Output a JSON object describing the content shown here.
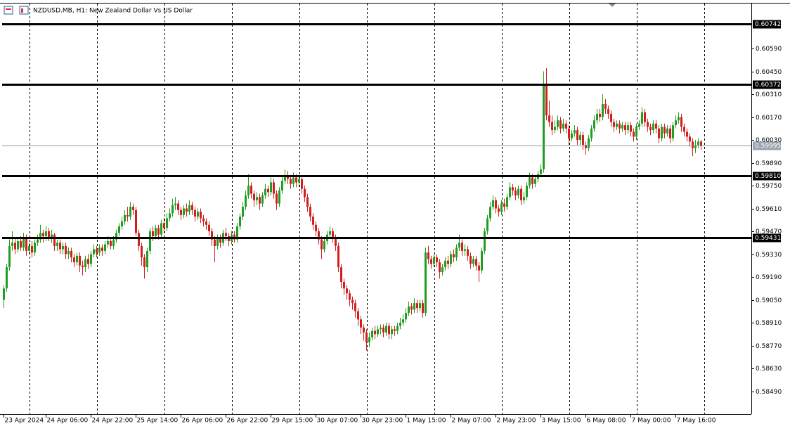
{
  "chart_data": {
    "type": "candlestick",
    "title": "NZDUSD.MB, H1:  New Zealand Dollar Vs US Dollar",
    "up_color": "#1f9e1f",
    "down_color": "#d21e1e",
    "grid": true,
    "xlim": [
      -0.5,
      265.75
    ],
    "xticks": [
      {
        "value": 0,
        "label": "23 Apr 2024"
      },
      {
        "value": 15,
        "label": "24 Apr 06:00"
      },
      {
        "value": 31,
        "label": "24 Apr 22:00"
      },
      {
        "value": 47,
        "label": "25 Apr 14:00"
      },
      {
        "value": 63,
        "label": "26 Apr 06:00"
      },
      {
        "value": 79,
        "label": "26 Apr 22:00"
      },
      {
        "value": 95,
        "label": "29 Apr 15:00"
      },
      {
        "value": 111,
        "label": "30 Apr 07:00"
      },
      {
        "value": 127,
        "label": "30 Apr 23:00"
      },
      {
        "value": 143,
        "label": "1 May 15:00"
      },
      {
        "value": 159,
        "label": "2 May 07:00"
      },
      {
        "value": 175,
        "label": "2 May 23:00"
      },
      {
        "value": 191,
        "label": "3 May 15:00"
      },
      {
        "value": 207,
        "label": "6 May 08:00"
      },
      {
        "value": 223,
        "label": "7 May 00:00"
      },
      {
        "value": 239,
        "label": "7 May 16:00"
      }
    ],
    "ylim": [
      0.5835,
      0.60866
    ],
    "yticks": [
      {
        "value": 0.6059,
        "label": "0.60590"
      },
      {
        "value": 0.6045,
        "label": "0.60450"
      },
      {
        "value": 0.6031,
        "label": "0.60310"
      },
      {
        "value": 0.6017,
        "label": "0.60170"
      },
      {
        "value": 0.6003,
        "label": "0.60030"
      },
      {
        "value": 0.5989,
        "label": "0.59890"
      },
      {
        "value": 0.5975,
        "label": "0.59750"
      },
      {
        "value": 0.5961,
        "label": "0.59610"
      },
      {
        "value": 0.5947,
        "label": "0.59470"
      },
      {
        "value": 0.5933,
        "label": "0.59330"
      },
      {
        "value": 0.5919,
        "label": "0.59190"
      },
      {
        "value": 0.5905,
        "label": "0.59050"
      },
      {
        "value": 0.5891,
        "label": "0.58910"
      },
      {
        "value": 0.5877,
        "label": "0.58770"
      },
      {
        "value": 0.5863,
        "label": "0.58630"
      },
      {
        "value": 0.5849,
        "label": "0.58490"
      }
    ],
    "levels": [
      0.60742,
      0.60372,
      {
        "value": 0.5981,
        "label": "0.59810"
      },
      0.59431
    ],
    "current_price": 0.59995,
    "open": [
      0.5905,
      0.5912,
      0.5925,
      0.5938,
      0.594,
      0.5936,
      0.5941,
      0.5937,
      0.5943,
      0.5935,
      0.5938,
      0.5934,
      0.594,
      0.5942,
      0.5946,
      0.5944,
      0.5947,
      0.5943,
      0.5945,
      0.5938,
      0.594,
      0.5936,
      0.5938,
      0.5933,
      0.5935,
      0.5931,
      0.5928,
      0.5932,
      0.5926,
      0.5925,
      0.593,
      0.5927,
      0.5933,
      0.5936,
      0.5934,
      0.5937,
      0.5935,
      0.5939,
      0.5941,
      0.5938,
      0.5942,
      0.5946,
      0.595,
      0.5953,
      0.5957,
      0.5956,
      0.5962,
      0.596,
      0.5946,
      0.5938,
      0.5931,
      0.5925,
      0.5935,
      0.5947,
      0.5944,
      0.5949,
      0.5945,
      0.5952,
      0.5949,
      0.5955,
      0.5958,
      0.5963,
      0.5964,
      0.596,
      0.5957,
      0.5961,
      0.5959,
      0.5963,
      0.596,
      0.5956,
      0.5959,
      0.5955,
      0.5953,
      0.5951,
      0.5947,
      0.5942,
      0.5938,
      0.5943,
      0.594,
      0.5946,
      0.5944,
      0.5941,
      0.5945,
      0.5942,
      0.595,
      0.5956,
      0.5962,
      0.5969,
      0.5975,
      0.597,
      0.5966,
      0.5968,
      0.5964,
      0.5969,
      0.5973,
      0.5971,
      0.5977,
      0.597,
      0.5964,
      0.5972,
      0.5978,
      0.5981,
      0.5979,
      0.5976,
      0.598,
      0.5977,
      0.5979,
      0.5973,
      0.5968,
      0.5962,
      0.5956,
      0.5951,
      0.5947,
      0.5942,
      0.5936,
      0.5941,
      0.5945,
      0.5947,
      0.5943,
      0.5938,
      0.5925,
      0.5916,
      0.5912,
      0.5909,
      0.5905,
      0.5903,
      0.5898,
      0.5893,
      0.5888,
      0.5885,
      0.5879,
      0.5882,
      0.5886,
      0.5884,
      0.5887,
      0.5888,
      0.5885,
      0.5889,
      0.5884,
      0.5887,
      0.5886,
      0.5889,
      0.5891,
      0.5893,
      0.5897,
      0.5901,
      0.5899,
      0.5903,
      0.59,
      0.5903,
      0.5897,
      0.5934,
      0.593,
      0.5927,
      0.5931,
      0.5928,
      0.5922,
      0.5925,
      0.5929,
      0.5927,
      0.5933,
      0.5931,
      0.5937,
      0.594,
      0.5935,
      0.5936,
      0.5932,
      0.5927,
      0.593,
      0.5926,
      0.5923,
      0.5935,
      0.5947,
      0.5955,
      0.5962,
      0.5966,
      0.5961,
      0.5959,
      0.5964,
      0.5962,
      0.5968,
      0.5974,
      0.5972,
      0.5969,
      0.5973,
      0.5966,
      0.5968,
      0.5975,
      0.598,
      0.5976,
      0.5979,
      0.5982,
      0.5985,
      0.6037,
      0.6018,
      0.6014,
      0.6009,
      0.6011,
      0.6015,
      0.601,
      0.6013,
      0.601,
      0.6004,
      0.6007,
      0.6009,
      0.6003,
      0.6006,
      0.6,
      0.5998,
      0.6004,
      0.601,
      0.6015,
      0.6019,
      0.6017,
      0.6025,
      0.6022,
      0.6019,
      0.6014,
      0.6011,
      0.6013,
      0.601,
      0.6012,
      0.6009,
      0.6012,
      0.6008,
      0.6005,
      0.6011,
      0.6013,
      0.602,
      0.6014,
      0.6011,
      0.6009,
      0.6013,
      0.601,
      0.6004,
      0.6011,
      0.6007,
      0.601,
      0.6004,
      0.6012,
      0.6015,
      0.6017,
      0.6011,
      0.6008,
      0.6005,
      0.6002,
      0.5998,
      0.6,
      0.6002
    ],
    "high": [
      0.5914,
      0.5927,
      0.5942,
      0.5947,
      0.5943,
      0.5943,
      0.5944,
      0.5946,
      0.5945,
      0.594,
      0.5941,
      0.5942,
      0.5945,
      0.5951,
      0.5948,
      0.595,
      0.5949,
      0.5948,
      0.5946,
      0.5942,
      0.5942,
      0.594,
      0.594,
      0.5937,
      0.5937,
      0.5933,
      0.5934,
      0.5934,
      0.5929,
      0.5932,
      0.5933,
      0.5935,
      0.5939,
      0.5938,
      0.5939,
      0.5939,
      0.5941,
      0.5944,
      0.5943,
      0.5944,
      0.5948,
      0.5952,
      0.5956,
      0.596,
      0.5962,
      0.5965,
      0.5964,
      0.5962,
      0.5948,
      0.594,
      0.5933,
      0.5937,
      0.5949,
      0.595,
      0.5951,
      0.5951,
      0.5954,
      0.5955,
      0.5958,
      0.5961,
      0.5967,
      0.5968,
      0.5966,
      0.5962,
      0.5963,
      0.5964,
      0.5966,
      0.5965,
      0.5962,
      0.5961,
      0.5961,
      0.5957,
      0.5955,
      0.5953,
      0.5949,
      0.5944,
      0.5945,
      0.5945,
      0.5948,
      0.5949,
      0.5946,
      0.5947,
      0.5947,
      0.5952,
      0.5958,
      0.5965,
      0.5972,
      0.5982,
      0.5977,
      0.5972,
      0.5971,
      0.597,
      0.5971,
      0.5976,
      0.5975,
      0.598,
      0.5979,
      0.5972,
      0.5974,
      0.5981,
      0.5985,
      0.5984,
      0.5981,
      0.5983,
      0.5982,
      0.5981,
      0.598,
      0.5975,
      0.597,
      0.5964,
      0.5958,
      0.5953,
      0.5949,
      0.5944,
      0.5943,
      0.5947,
      0.595,
      0.5949,
      0.5945,
      0.594,
      0.5927,
      0.5918,
      0.5914,
      0.5911,
      0.5907,
      0.5905,
      0.59,
      0.5895,
      0.589,
      0.5887,
      0.5885,
      0.5888,
      0.5889,
      0.5889,
      0.589,
      0.589,
      0.5891,
      0.5891,
      0.5889,
      0.5889,
      0.5891,
      0.5894,
      0.5896,
      0.59,
      0.5904,
      0.5903,
      0.5906,
      0.5905,
      0.5905,
      0.5905,
      0.5937,
      0.5938,
      0.5932,
      0.5933,
      0.5933,
      0.593,
      0.5927,
      0.5931,
      0.5932,
      0.5935,
      0.5936,
      0.5939,
      0.5945,
      0.5942,
      0.5939,
      0.5938,
      0.5934,
      0.5932,
      0.5932,
      0.5928,
      0.5937,
      0.5949,
      0.5957,
      0.5965,
      0.5969,
      0.5968,
      0.5963,
      0.5966,
      0.5967,
      0.597,
      0.5977,
      0.5976,
      0.5974,
      0.5975,
      0.5975,
      0.5971,
      0.5977,
      0.5983,
      0.5982,
      0.5981,
      0.5984,
      0.5988,
      0.6045,
      0.6047,
      0.6027,
      0.6018,
      0.6015,
      0.6018,
      0.6017,
      0.6016,
      0.6015,
      0.6012,
      0.6009,
      0.6012,
      0.6011,
      0.6008,
      0.6008,
      0.6002,
      0.6006,
      0.6012,
      0.6018,
      0.6022,
      0.6022,
      0.6031,
      0.6028,
      0.6024,
      0.6021,
      0.6016,
      0.6015,
      0.6015,
      0.6014,
      0.6014,
      0.6014,
      0.6014,
      0.601,
      0.6013,
      0.6015,
      0.6023,
      0.6022,
      0.6016,
      0.6013,
      0.6015,
      0.6015,
      0.6012,
      0.6013,
      0.6013,
      0.6012,
      0.6012,
      0.6014,
      0.6018,
      0.602,
      0.6019,
      0.6013,
      0.601,
      0.6007,
      0.6004,
      0.6003,
      0.6004,
      0.6003
    ],
    "low": [
      0.59,
      0.591,
      0.5923,
      0.5935,
      0.5933,
      0.5934,
      0.5935,
      0.5935,
      0.5932,
      0.5933,
      0.5931,
      0.5932,
      0.5938,
      0.594,
      0.594,
      0.5941,
      0.5941,
      0.594,
      0.5935,
      0.5935,
      0.5933,
      0.5933,
      0.593,
      0.593,
      0.5928,
      0.5925,
      0.5926,
      0.5922,
      0.592,
      0.5922,
      0.5924,
      0.5925,
      0.5931,
      0.5931,
      0.5932,
      0.5932,
      0.5933,
      0.5937,
      0.5936,
      0.5936,
      0.594,
      0.5944,
      0.5948,
      0.5951,
      0.5953,
      0.5954,
      0.5957,
      0.5944,
      0.5935,
      0.5926,
      0.5918,
      0.5922,
      0.5933,
      0.5941,
      0.5942,
      0.5942,
      0.5943,
      0.5946,
      0.5947,
      0.5953,
      0.5956,
      0.596,
      0.5957,
      0.5954,
      0.5955,
      0.5956,
      0.5957,
      0.5957,
      0.5953,
      0.5954,
      0.5952,
      0.595,
      0.5948,
      0.5944,
      0.5938,
      0.5928,
      0.5936,
      0.5937,
      0.5938,
      0.5941,
      0.5938,
      0.5939,
      0.594,
      0.594,
      0.5948,
      0.5954,
      0.596,
      0.5967,
      0.5967,
      0.5962,
      0.5963,
      0.596,
      0.5962,
      0.5967,
      0.5968,
      0.5969,
      0.5967,
      0.596,
      0.5962,
      0.597,
      0.5976,
      0.5976,
      0.5973,
      0.5974,
      0.5974,
      0.5974,
      0.597,
      0.5965,
      0.5959,
      0.5953,
      0.5948,
      0.5944,
      0.5939,
      0.593,
      0.5934,
      0.5939,
      0.5943,
      0.594,
      0.5935,
      0.5922,
      0.5912,
      0.5908,
      0.5905,
      0.5901,
      0.5899,
      0.5894,
      0.5889,
      0.5884,
      0.588,
      0.5874,
      0.5876,
      0.588,
      0.5881,
      0.5882,
      0.5884,
      0.5882,
      0.5883,
      0.5881,
      0.5881,
      0.5883,
      0.5884,
      0.5887,
      0.5889,
      0.5891,
      0.5895,
      0.5896,
      0.5897,
      0.5897,
      0.5898,
      0.5894,
      0.5895,
      0.5927,
      0.5924,
      0.5925,
      0.5925,
      0.5918,
      0.592,
      0.5923,
      0.5924,
      0.5925,
      0.5928,
      0.5929,
      0.5935,
      0.5932,
      0.5932,
      0.5929,
      0.5924,
      0.5925,
      0.5923,
      0.5916,
      0.5921,
      0.5933,
      0.5945,
      0.5953,
      0.596,
      0.5958,
      0.5956,
      0.5957,
      0.5959,
      0.596,
      0.5966,
      0.5969,
      0.5966,
      0.5967,
      0.5963,
      0.5964,
      0.5966,
      0.5973,
      0.5973,
      0.5974,
      0.5977,
      0.598,
      0.5983,
      0.6015,
      0.6011,
      0.6006,
      0.6007,
      0.6009,
      0.6007,
      0.6008,
      0.6007,
      0.6,
      0.6002,
      0.6005,
      0.6,
      0.6,
      0.5997,
      0.5994,
      0.5996,
      0.6002,
      0.6008,
      0.6013,
      0.6014,
      0.6015,
      0.6019,
      0.6016,
      0.6011,
      0.6008,
      0.6009,
      0.6007,
      0.6008,
      0.6006,
      0.6007,
      0.6005,
      0.6002,
      0.6003,
      0.6009,
      0.6011,
      0.6011,
      0.6008,
      0.6006,
      0.6007,
      0.6007,
      0.6001,
      0.6002,
      0.6004,
      0.6005,
      0.6001,
      0.6002,
      0.601,
      0.6013,
      0.6008,
      0.6005,
      0.6002,
      0.5999,
      0.5993,
      0.5995,
      0.5998,
      0.5997
    ],
    "close": [
      0.5912,
      0.5925,
      0.5938,
      0.594,
      0.5936,
      0.5941,
      0.5937,
      0.5943,
      0.5935,
      0.5938,
      0.5934,
      0.594,
      0.5942,
      0.5946,
      0.5944,
      0.5947,
      0.5943,
      0.5945,
      0.5938,
      0.594,
      0.5936,
      0.5938,
      0.5933,
      0.5935,
      0.5931,
      0.5928,
      0.5932,
      0.5926,
      0.5925,
      0.593,
      0.5927,
      0.5933,
      0.5936,
      0.5934,
      0.5937,
      0.5935,
      0.5939,
      0.5941,
      0.5938,
      0.5942,
      0.5946,
      0.595,
      0.5953,
      0.5957,
      0.5956,
      0.5962,
      0.596,
      0.5946,
      0.5938,
      0.5931,
      0.5925,
      0.5935,
      0.5947,
      0.5944,
      0.5949,
      0.5945,
      0.5952,
      0.5949,
      0.5955,
      0.5958,
      0.5963,
      0.5964,
      0.596,
      0.5957,
      0.5961,
      0.5959,
      0.5963,
      0.596,
      0.5956,
      0.5959,
      0.5955,
      0.5953,
      0.5951,
      0.5947,
      0.5942,
      0.5938,
      0.5943,
      0.594,
      0.5946,
      0.5944,
      0.5941,
      0.5945,
      0.5942,
      0.595,
      0.5956,
      0.5962,
      0.5969,
      0.5975,
      0.597,
      0.5966,
      0.5968,
      0.5964,
      0.5969,
      0.5973,
      0.5971,
      0.5977,
      0.597,
      0.5964,
      0.5972,
      0.5978,
      0.5981,
      0.5979,
      0.5976,
      0.598,
      0.5977,
      0.5979,
      0.5973,
      0.5968,
      0.5962,
      0.5956,
      0.5951,
      0.5947,
      0.5942,
      0.5936,
      0.5941,
      0.5945,
      0.5947,
      0.5943,
      0.5938,
      0.5925,
      0.5916,
      0.5912,
      0.5909,
      0.5905,
      0.5903,
      0.5898,
      0.5893,
      0.5888,
      0.5885,
      0.5879,
      0.5882,
      0.5886,
      0.5884,
      0.5887,
      0.5888,
      0.5885,
      0.5889,
      0.5884,
      0.5887,
      0.5886,
      0.5889,
      0.5891,
      0.5893,
      0.5897,
      0.5901,
      0.5899,
      0.5903,
      0.59,
      0.5903,
      0.5897,
      0.5934,
      0.593,
      0.5927,
      0.5931,
      0.5928,
      0.5922,
      0.5925,
      0.5929,
      0.5927,
      0.5933,
      0.5931,
      0.5937,
      0.594,
      0.5935,
      0.5936,
      0.5932,
      0.5927,
      0.593,
      0.5926,
      0.5923,
      0.5935,
      0.5947,
      0.5955,
      0.5962,
      0.5966,
      0.5961,
      0.5959,
      0.5964,
      0.5962,
      0.5968,
      0.5974,
      0.5972,
      0.5969,
      0.5973,
      0.5966,
      0.5968,
      0.5975,
      0.598,
      0.5976,
      0.5979,
      0.5982,
      0.5985,
      0.6037,
      0.6018,
      0.6014,
      0.6009,
      0.6011,
      0.6015,
      0.601,
      0.6013,
      0.601,
      0.6004,
      0.6007,
      0.6009,
      0.6003,
      0.6006,
      0.6,
      0.5998,
      0.6004,
      0.601,
      0.6015,
      0.6019,
      0.6017,
      0.6025,
      0.6022,
      0.6019,
      0.6014,
      0.6011,
      0.6013,
      0.601,
      0.6012,
      0.6009,
      0.6012,
      0.6008,
      0.6005,
      0.6011,
      0.6013,
      0.602,
      0.6014,
      0.6011,
      0.6009,
      0.6013,
      0.601,
      0.6004,
      0.6011,
      0.6007,
      0.601,
      0.6004,
      0.6012,
      0.6015,
      0.6017,
      0.6011,
      0.6008,
      0.6005,
      0.6002,
      0.5998,
      0.6,
      0.6002,
      0.59995
    ]
  }
}
